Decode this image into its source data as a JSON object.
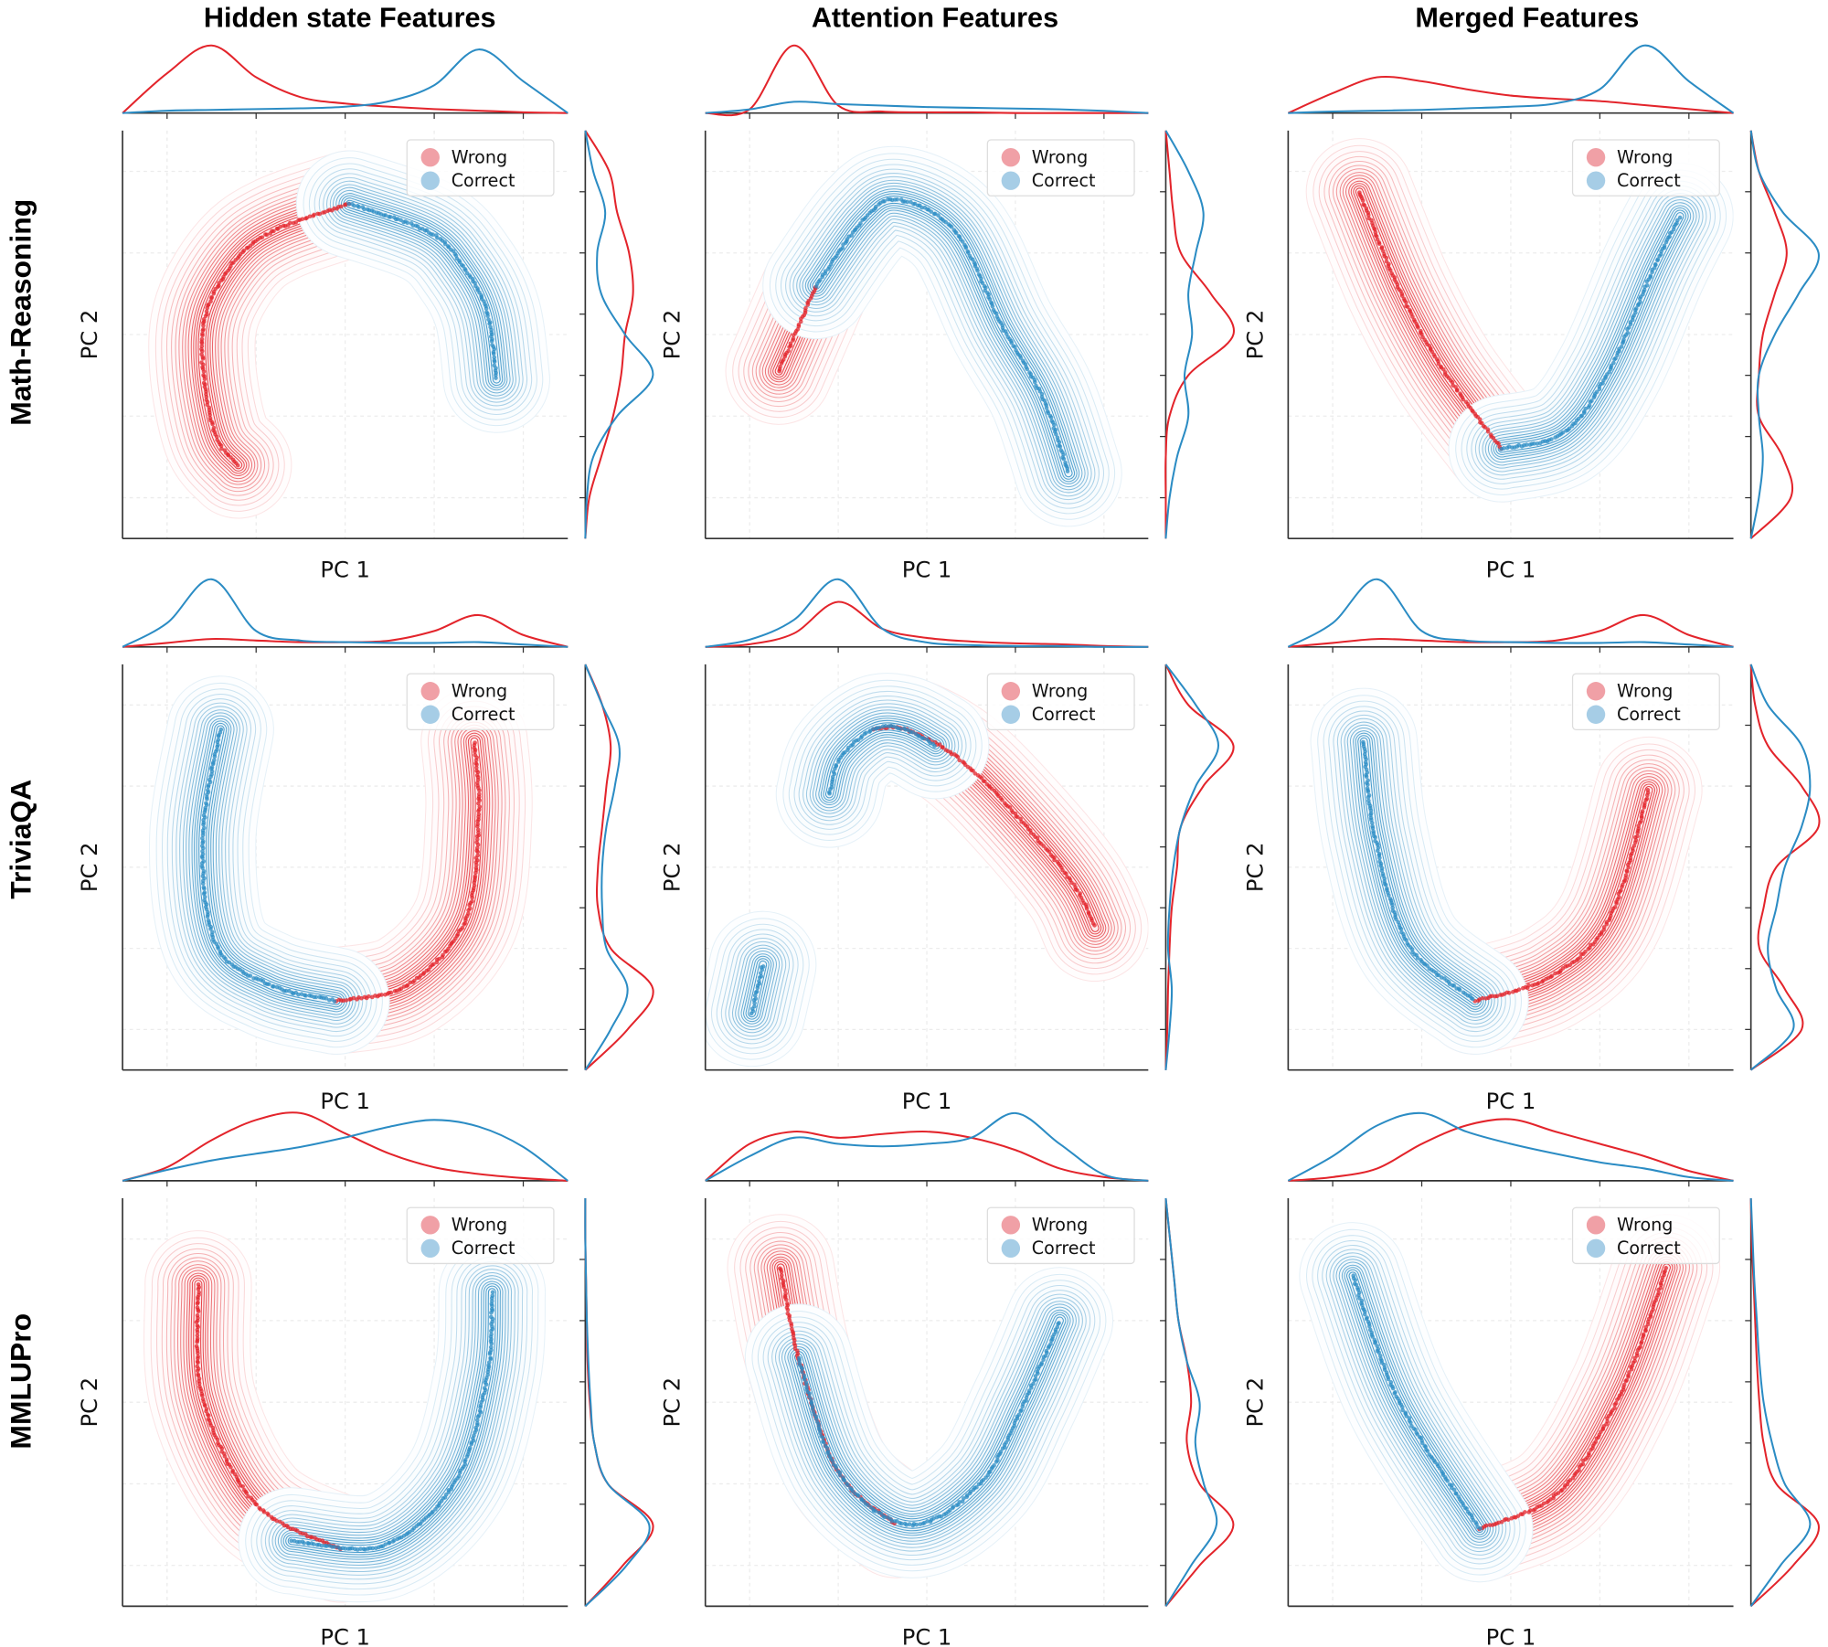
{
  "figure": {
    "column_titles": [
      "Hidden state Features",
      "Attention Features",
      "Merged Features"
    ],
    "row_labels": [
      "Math-Reasoning",
      "TriviaQA",
      "MMLUPro"
    ]
  },
  "colors": {
    "wrong": "#e3242b",
    "correct": "#2b8cc4",
    "wrong_light": "#f0a0a6",
    "correct_light": "#a6cde6",
    "axis": "#333333",
    "grid": "#ececec"
  },
  "chart_data": [
    {
      "type": "scatter",
      "dataset": "Math-Reasoning",
      "features": "Hidden state Features",
      "xlabel": "PC 1",
      "ylabel": "PC 2",
      "xlim": [
        0,
        10
      ],
      "ylim": [
        0,
        10
      ],
      "legend": "top-right",
      "grid": true,
      "series": [
        {
          "name": "Wrong",
          "paths": [
            [
              [
                2.6,
                1.8
              ],
              [
                2.1,
                2.5
              ],
              [
                1.8,
                4.2
              ],
              [
                1.9,
                5.6
              ],
              [
                2.6,
                6.9
              ],
              [
                3.5,
                7.6
              ],
              [
                5.1,
                8.2
              ]
            ]
          ],
          "x_density": [
            0,
            0.5,
            0.85,
            0.45,
            0.2,
            0.12,
            0.08,
            0.05,
            0.03,
            0.01,
            0
          ],
          "y_density": [
            0,
            0.05,
            0.2,
            0.35,
            0.45,
            0.5,
            0.6,
            0.55,
            0.4,
            0.3,
            0
          ]
        },
        {
          "name": "Correct",
          "paths": [
            [
              [
                5.1,
                8.2
              ],
              [
                6.9,
                7.5
              ],
              [
                7.7,
                6.6
              ],
              [
                8.2,
                5.5
              ],
              [
                8.4,
                3.9
              ]
            ]
          ],
          "x_density": [
            0,
            0.03,
            0.04,
            0.05,
            0.06,
            0.08,
            0.15,
            0.35,
            0.8,
            0.4,
            0
          ],
          "y_density": [
            0,
            0.02,
            0.1,
            0.4,
            0.85,
            0.5,
            0.2,
            0.15,
            0.25,
            0.1,
            0
          ]
        }
      ]
    },
    {
      "type": "scatter",
      "dataset": "Math-Reasoning",
      "features": "Attention Features",
      "xlabel": "PC 1",
      "ylabel": "PC 2",
      "xlim": [
        0,
        10
      ],
      "ylim": [
        0,
        10
      ],
      "legend": "top-right",
      "grid": true,
      "series": [
        {
          "name": "Wrong",
          "paths": [
            [
              [
                1.66,
                4.1
              ],
              [
                2.1,
                5.2
              ],
              [
                2.5,
                6.2
              ]
            ]
          ],
          "x_density": [
            0,
            0.05,
            0.9,
            0.1,
            0.02,
            0.01,
            0.01,
            0,
            0,
            0,
            0
          ],
          "y_density": [
            0,
            0,
            0,
            0.05,
            0.3,
            0.9,
            0.6,
            0.2,
            0.1,
            0.05,
            0
          ]
        },
        {
          "name": "Correct",
          "paths": [
            [
              [
                2.5,
                6.2
              ],
              [
                3.55,
                7.8
              ],
              [
                4.35,
                8.3
              ],
              [
                5.66,
                7.5
              ],
              [
                6.7,
                5.2
              ],
              [
                7.6,
                3.5
              ],
              [
                8.2,
                1.6
              ]
            ]
          ],
          "x_density": [
            0,
            0.05,
            0.15,
            0.12,
            0.1,
            0.08,
            0.07,
            0.06,
            0.05,
            0.03,
            0
          ],
          "y_density": [
            0,
            0.05,
            0.15,
            0.3,
            0.25,
            0.35,
            0.3,
            0.4,
            0.5,
            0.3,
            0
          ]
        }
      ]
    },
    {
      "type": "scatter",
      "dataset": "Math-Reasoning",
      "features": "Merged Features",
      "xlabel": "PC 1",
      "ylabel": "PC 2",
      "xlim": [
        0,
        10
      ],
      "ylim": [
        0,
        10
      ],
      "legend": "top-right",
      "grid": true,
      "series": [
        {
          "name": "Wrong",
          "paths": [
            [
              [
                1.6,
                8.5
              ],
              [
                2.5,
                6.1
              ],
              [
                3.5,
                4.1
              ],
              [
                4.8,
                2.2
              ]
            ]
          ],
          "x_density": [
            0,
            0.25,
            0.45,
            0.4,
            0.3,
            0.22,
            0.18,
            0.15,
            0.1,
            0.05,
            0
          ],
          "y_density": [
            0,
            0.5,
            0.4,
            0.1,
            0.1,
            0.15,
            0.3,
            0.45,
            0.3,
            0.1,
            0
          ]
        },
        {
          "name": "Correct",
          "paths": [
            [
              [
                4.8,
                2.2
              ],
              [
                6.2,
                2.6
              ],
              [
                7.2,
                4.1
              ],
              [
                8.2,
                6.6
              ],
              [
                8.8,
                7.9
              ]
            ]
          ],
          "x_density": [
            0,
            0.02,
            0.03,
            0.04,
            0.06,
            0.08,
            0.12,
            0.3,
            0.85,
            0.4,
            0
          ],
          "y_density": [
            0,
            0.1,
            0.15,
            0.1,
            0.1,
            0.3,
            0.6,
            0.85,
            0.4,
            0.1,
            0
          ]
        }
      ]
    },
    {
      "type": "scatter",
      "dataset": "TriviaQA",
      "features": "Hidden state Features",
      "xlabel": "PC 1",
      "ylabel": "PC 2",
      "xlim": [
        0,
        10
      ],
      "ylim": [
        0,
        10
      ],
      "legend": "top-right",
      "grid": true,
      "series": [
        {
          "name": "Wrong",
          "paths": [
            [
              [
                4.8,
                1.7
              ],
              [
                6.4,
                2.1
              ],
              [
                7.7,
                3.7
              ],
              [
                8.0,
                6.3
              ],
              [
                7.9,
                8.1
              ]
            ]
          ],
          "x_density": [
            0,
            0.05,
            0.1,
            0.08,
            0.06,
            0.06,
            0.08,
            0.2,
            0.4,
            0.15,
            0
          ],
          "y_density": [
            0,
            0.5,
            0.8,
            0.3,
            0.15,
            0.15,
            0.2,
            0.25,
            0.3,
            0.2,
            0
          ]
        },
        {
          "name": "Correct",
          "paths": [
            [
              [
                2.2,
                8.4
              ],
              [
                1.8,
                5.7
              ],
              [
                2.1,
                3.1
              ],
              [
                3.3,
                2.1
              ],
              [
                4.8,
                1.7
              ]
            ]
          ],
          "x_density": [
            0,
            0.3,
            0.85,
            0.2,
            0.08,
            0.06,
            0.05,
            0.05,
            0.06,
            0.03,
            0
          ],
          "y_density": [
            0,
            0.3,
            0.5,
            0.25,
            0.2,
            0.2,
            0.25,
            0.35,
            0.4,
            0.2,
            0
          ]
        }
      ]
    },
    {
      "type": "scatter",
      "dataset": "TriviaQA",
      "features": "Attention Features",
      "xlabel": "PC 1",
      "ylabel": "PC 2",
      "xlim": [
        0,
        10
      ],
      "ylim": [
        0,
        10
      ],
      "legend": "top-right",
      "grid": true,
      "series": [
        {
          "name": "Wrong",
          "paths": [
            [
              [
                3.8,
                8.4
              ],
              [
                4.5,
                8.4
              ],
              [
                5.7,
                7.7
              ],
              [
                7.0,
                6.3
              ],
              [
                8.3,
                4.6
              ],
              [
                8.8,
                3.5
              ]
            ]
          ],
          "x_density": [
            0,
            0.03,
            0.15,
            0.5,
            0.2,
            0.1,
            0.06,
            0.04,
            0.03,
            0.01,
            0
          ],
          "y_density": [
            0,
            0.02,
            0.03,
            0.05,
            0.08,
            0.15,
            0.2,
            0.5,
            0.9,
            0.3,
            0
          ]
        },
        {
          "name": "Correct",
          "paths": [
            [
              [
                1.05,
                1.4
              ],
              [
                1.3,
                2.6
              ]
            ],
            [
              [
                2.8,
                6.8
              ],
              [
                3.05,
                7.7
              ],
              [
                3.8,
                8.4
              ],
              [
                4.5,
                8.4
              ],
              [
                5.2,
                8.0
              ]
            ]
          ],
          "x_density": [
            0,
            0.08,
            0.3,
            0.75,
            0.2,
            0.05,
            0.02,
            0.01,
            0.01,
            0,
            0
          ],
          "y_density": [
            0,
            0.05,
            0.08,
            0.03,
            0.05,
            0.1,
            0.2,
            0.4,
            0.7,
            0.4,
            0
          ]
        }
      ]
    },
    {
      "type": "scatter",
      "dataset": "TriviaQA",
      "features": "Merged Features",
      "xlabel": "PC 1",
      "ylabel": "PC 2",
      "xlim": [
        0,
        10
      ],
      "ylim": [
        0,
        10
      ],
      "legend": "top-right",
      "grid": true,
      "series": [
        {
          "name": "Wrong",
          "paths": [
            [
              [
                4.2,
                1.7
              ],
              [
                5.9,
                2.3
              ],
              [
                7.2,
                3.7
              ],
              [
                8.1,
                6.9
              ]
            ]
          ],
          "x_density": [
            0,
            0.05,
            0.1,
            0.08,
            0.06,
            0.06,
            0.08,
            0.2,
            0.4,
            0.15,
            0
          ],
          "y_density": [
            0,
            0.6,
            0.4,
            0.1,
            0.15,
            0.3,
            0.8,
            0.6,
            0.2,
            0.05,
            0
          ]
        },
        {
          "name": "Correct",
          "paths": [
            [
              [
                1.7,
                8.1
              ],
              [
                1.96,
                5.7
              ],
              [
                2.7,
                3.1
              ],
              [
                4.2,
                1.7
              ]
            ]
          ],
          "x_density": [
            0,
            0.3,
            0.85,
            0.2,
            0.08,
            0.06,
            0.05,
            0.05,
            0.06,
            0.03,
            0
          ],
          "y_density": [
            0,
            0.5,
            0.3,
            0.2,
            0.3,
            0.4,
            0.6,
            0.7,
            0.6,
            0.2,
            0
          ]
        }
      ]
    },
    {
      "type": "scatter",
      "dataset": "MMLUPro",
      "features": "Hidden state Features",
      "xlabel": "PC 1",
      "ylabel": "PC 2",
      "xlim": [
        0,
        10
      ],
      "ylim": [
        0,
        10
      ],
      "legend": "top-right",
      "grid": true,
      "series": [
        {
          "name": "Wrong",
          "paths": [
            [
              [
                1.7,
                7.9
              ],
              [
                1.8,
                5.1
              ],
              [
                3.0,
                2.5
              ],
              [
                4.9,
                1.4
              ]
            ]
          ],
          "x_density": [
            0,
            0.1,
            0.3,
            0.45,
            0.5,
            0.35,
            0.2,
            0.1,
            0.05,
            0.02,
            0
          ],
          "y_density": [
            0,
            0.5,
            0.9,
            0.3,
            0.12,
            0.06,
            0.03,
            0.02,
            0.01,
            0,
            0
          ]
        },
        {
          "name": "Correct",
          "paths": [
            [
              [
                3.8,
                1.6
              ],
              [
                5.9,
                1.5
              ],
              [
                7.5,
                3.1
              ],
              [
                8.2,
                5.7
              ],
              [
                8.3,
                7.7
              ]
            ]
          ],
          "x_density": [
            0,
            0.08,
            0.15,
            0.2,
            0.25,
            0.32,
            0.4,
            0.45,
            0.4,
            0.25,
            0
          ],
          "y_density": [
            0,
            0.55,
            0.85,
            0.3,
            0.12,
            0.07,
            0.04,
            0.02,
            0.01,
            0,
            0
          ]
        }
      ]
    },
    {
      "type": "scatter",
      "dataset": "MMLUPro",
      "features": "Attention Features",
      "xlabel": "PC 1",
      "ylabel": "PC 2",
      "xlim": [
        0,
        10
      ],
      "ylim": [
        0,
        10
      ],
      "legend": "top-right",
      "grid": true,
      "series": [
        {
          "name": "Wrong",
          "paths": [
            [
              [
                1.7,
                8.3
              ],
              [
                2.1,
                6.1
              ],
              [
                3.0,
                3.3
              ],
              [
                4.3,
                2.0
              ]
            ]
          ],
          "x_density": [
            0,
            0.3,
            0.4,
            0.35,
            0.38,
            0.4,
            0.35,
            0.25,
            0.1,
            0.03,
            0
          ],
          "y_density": [
            0,
            0.4,
            0.8,
            0.4,
            0.25,
            0.3,
            0.25,
            0.15,
            0.1,
            0.05,
            0
          ]
        },
        {
          "name": "Correct",
          "paths": [
            [
              [
                2.1,
                6.1
              ],
              [
                3.0,
                3.3
              ],
              [
                4.6,
                2.0
              ],
              [
                6.2,
                3.0
              ],
              [
                7.2,
                5.0
              ],
              [
                8.0,
                7.0
              ]
            ]
          ],
          "x_density": [
            0,
            0.2,
            0.35,
            0.3,
            0.28,
            0.3,
            0.35,
            0.55,
            0.3,
            0.05,
            0
          ],
          "y_density": [
            0,
            0.3,
            0.6,
            0.45,
            0.35,
            0.4,
            0.25,
            0.15,
            0.1,
            0.05,
            0
          ]
        }
      ]
    },
    {
      "type": "scatter",
      "dataset": "MMLUPro",
      "features": "Merged Features",
      "xlabel": "PC 1",
      "ylabel": "PC 2",
      "xlim": [
        0,
        10
      ],
      "ylim": [
        0,
        10
      ],
      "legend": "top-right",
      "grid": true,
      "series": [
        {
          "name": "Wrong",
          "paths": [
            [
              [
                4.3,
                1.9
              ],
              [
                6.1,
                2.8
              ],
              [
                7.5,
                5.3
              ],
              [
                8.5,
                8.3
              ]
            ]
          ],
          "x_density": [
            0,
            0.03,
            0.1,
            0.3,
            0.45,
            0.5,
            0.4,
            0.3,
            0.2,
            0.08,
            0
          ],
          "y_density": [
            0,
            0.5,
            0.8,
            0.3,
            0.15,
            0.1,
            0.07,
            0.05,
            0.03,
            0.01,
            0
          ]
        },
        {
          "name": "Correct",
          "paths": [
            [
              [
                1.45,
                8.1
              ],
              [
                2.5,
                5.0
              ],
              [
                4.3,
                1.9
              ]
            ]
          ],
          "x_density": [
            0,
            0.2,
            0.45,
            0.55,
            0.4,
            0.3,
            0.22,
            0.15,
            0.1,
            0.03,
            0
          ],
          "y_density": [
            0,
            0.35,
            0.7,
            0.4,
            0.25,
            0.15,
            0.1,
            0.07,
            0.04,
            0.02,
            0
          ]
        }
      ]
    }
  ]
}
